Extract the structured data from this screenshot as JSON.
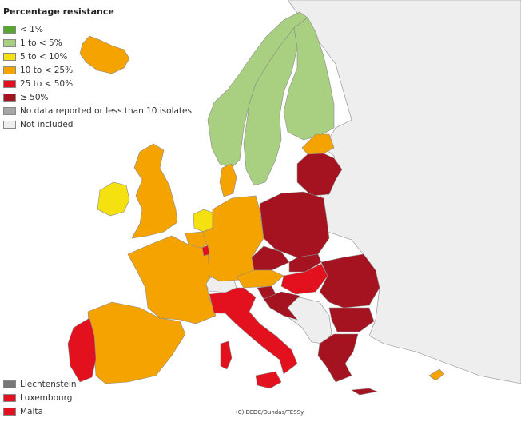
{
  "legend": {
    "title": "Percentage resistance",
    "items": [
      {
        "label": "< 1%",
        "color": "#5aa532"
      },
      {
        "label": "1 to < 5%",
        "color": "#a8d080"
      },
      {
        "label": "5 to < 10%",
        "color": "#f5e010"
      },
      {
        "label": "10 to < 25%",
        "color": "#f4a300"
      },
      {
        "label": "25 to < 50%",
        "color": "#e3101e"
      },
      {
        "label": "≥ 50%",
        "color": "#a61320"
      },
      {
        "label": "No data reported or less than 10 isolates",
        "color": "#a6a6a6"
      },
      {
        "label": "Not included",
        "color": "#eeeeee"
      }
    ]
  },
  "small_countries": [
    {
      "label": "Liechtenstein",
      "color": "#777777"
    },
    {
      "label": "Luxembourg",
      "color": "#e3101e"
    },
    {
      "label": "Malta",
      "color": "#e3101e"
    }
  ],
  "credit": "(C) ECDC/Dundas/TESSy",
  "colors": {
    "lt1": "#5aa532",
    "c1to5": "#a8d080",
    "c5to10": "#f5e010",
    "c10to25": "#f4a300",
    "c25to50": "#e3101e",
    "ge50": "#a61320",
    "nodata": "#a6a6a6",
    "notincluded": "#eeeeee"
  }
}
